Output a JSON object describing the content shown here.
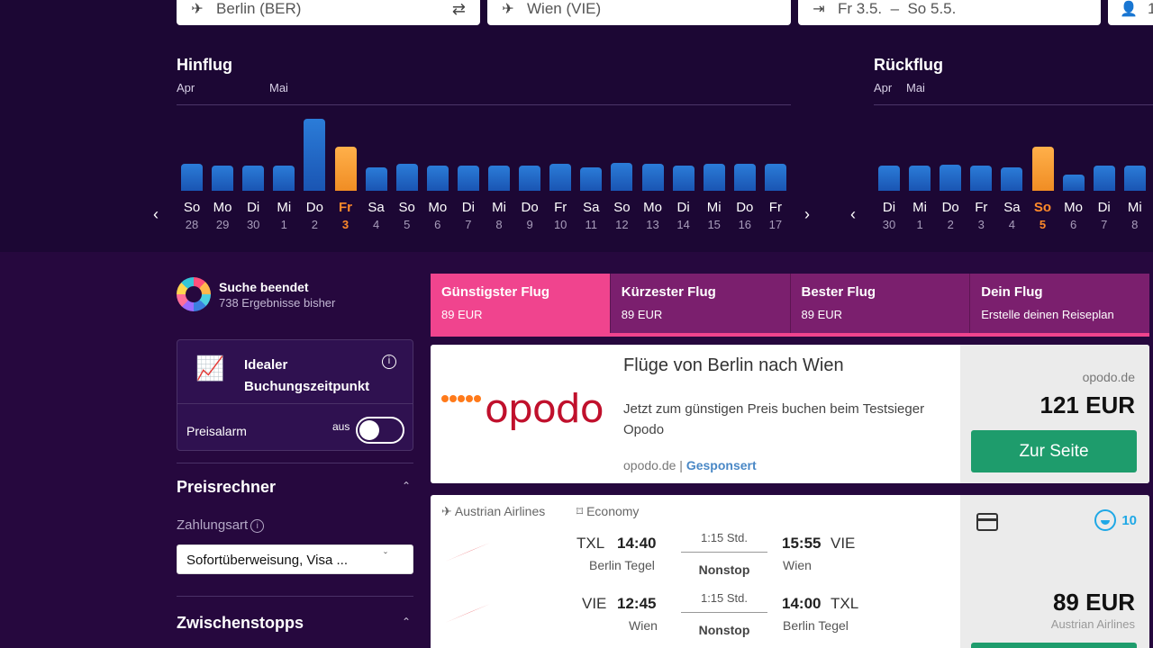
{
  "search": {
    "from": "Berlin (BER)",
    "to": "Wien (VIE)",
    "dates": "Fr 3.5.  –  So 5.5.",
    "pax": "1"
  },
  "outbound": {
    "title": "Hinflug",
    "months": [
      "Apr",
      "Mai"
    ],
    "days": [
      {
        "dn": "So",
        "dd": "28",
        "level": 0.31
      },
      {
        "dn": "Mo",
        "dd": "29",
        "level": 0.29
      },
      {
        "dn": "Di",
        "dd": "30",
        "level": 0.29
      },
      {
        "dn": "Mi",
        "dd": "1",
        "level": 0.29
      },
      {
        "dn": "Do",
        "dd": "2",
        "level": 0.83
      },
      {
        "dn": "Fr",
        "dd": "3",
        "level": 0.51,
        "selected": true
      },
      {
        "dn": "Sa",
        "dd": "4",
        "level": 0.27
      },
      {
        "dn": "So",
        "dd": "5",
        "level": 0.31
      },
      {
        "dn": "Mo",
        "dd": "6",
        "level": 0.29
      },
      {
        "dn": "Di",
        "dd": "7",
        "level": 0.29
      },
      {
        "dn": "Mi",
        "dd": "8",
        "level": 0.29
      },
      {
        "dn": "Do",
        "dd": "9",
        "level": 0.29
      },
      {
        "dn": "Fr",
        "dd": "10",
        "level": 0.31
      },
      {
        "dn": "Sa",
        "dd": "11",
        "level": 0.27
      },
      {
        "dn": "So",
        "dd": "12",
        "level": 0.32
      },
      {
        "dn": "Mo",
        "dd": "13",
        "level": 0.31
      },
      {
        "dn": "Di",
        "dd": "14",
        "level": 0.29
      },
      {
        "dn": "Mi",
        "dd": "15",
        "level": 0.31
      },
      {
        "dn": "Do",
        "dd": "16",
        "level": 0.31
      },
      {
        "dn": "Fr",
        "dd": "17",
        "level": 0.31
      }
    ]
  },
  "return": {
    "title": "Rückflug",
    "months": [
      "Apr",
      "Mai"
    ],
    "days": [
      {
        "dn": "Di",
        "dd": "30",
        "level": 0.29
      },
      {
        "dn": "Mi",
        "dd": "1",
        "level": 0.29
      },
      {
        "dn": "Do",
        "dd": "2",
        "level": 0.3
      },
      {
        "dn": "Fr",
        "dd": "3",
        "level": 0.29
      },
      {
        "dn": "Sa",
        "dd": "4",
        "level": 0.27
      },
      {
        "dn": "So",
        "dd": "5",
        "level": 0.51,
        "selected": true
      },
      {
        "dn": "Mo",
        "dd": "6",
        "level": 0.19
      },
      {
        "dn": "Di",
        "dd": "7",
        "level": 0.29
      },
      {
        "dn": "Mi",
        "dd": "8",
        "level": 0.29
      }
    ]
  },
  "status": {
    "title": "Suche beendet",
    "subtitle": "738 Ergebnisse bisher"
  },
  "ideal": {
    "title": "Idealer Buchungszeitpunkt",
    "alarm_label": "Preisalarm",
    "toggle_state": "aus"
  },
  "filters": {
    "price_calc": "Preisrechner",
    "payment_label": "Zahlungsart",
    "payment_value": "Sofortüberweisung, Visa ...",
    "stops": "Zwischenstopps"
  },
  "tabs": [
    {
      "label": "Günstigster Flug",
      "value": "89 EUR",
      "active": true
    },
    {
      "label": "Kürzester Flug",
      "value": "89 EUR"
    },
    {
      "label": "Bester Flug",
      "value": "89 EUR"
    },
    {
      "label": "Dein Flug",
      "value": "Erstelle deinen Reiseplan"
    }
  ],
  "ad": {
    "logo": "opodo",
    "title": "Flüge von Berlin nach Wien",
    "desc": "Jetzt zum günstigen Preis buchen beim Testsieger Opodo",
    "domain": "opodo.de",
    "sponsored": "Gesponsert",
    "provider": "opodo.de",
    "price": "121 EUR",
    "button": "Zur Seite"
  },
  "flight": {
    "airline": "Austrian Airlines",
    "cabin": "Economy",
    "score": "10",
    "price": "89 EUR",
    "seller": "Austrian Airlines",
    "segments": [
      {
        "code1": "TXL",
        "time1": "14:40",
        "city1": "Berlin Tegel",
        "dur": "1:15 Std.",
        "stops": "Nonstop",
        "time2": "15:55",
        "code2": "VIE",
        "city2": "Wien"
      },
      {
        "code1": "VIE",
        "time1": "12:45",
        "city1": "Wien",
        "dur": "1:15 Std.",
        "stops": "Nonstop",
        "time2": "14:00",
        "code2": "TXL",
        "city2": "Berlin Tegel"
      }
    ]
  },
  "colors": {
    "accent": "#f0448e",
    "bar": "#1f63c4",
    "selected_bar": "#f99a35",
    "button": "#1e9c6c"
  }
}
